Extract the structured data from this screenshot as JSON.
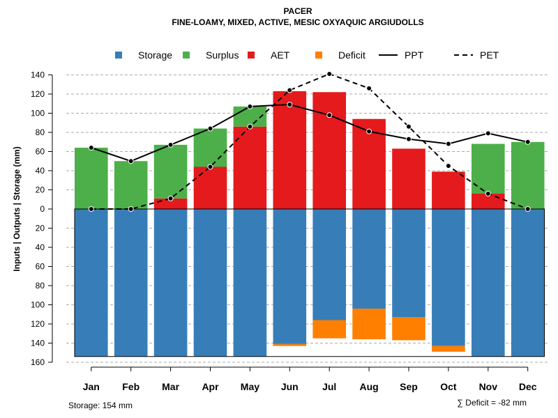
{
  "chart_data": {
    "type": "bar",
    "title": "PACER",
    "subtitle": "FINE-LOAMY, MIXED, ACTIVE, MESIC OXYAQUIC ARGIUDOLLS",
    "ylabel": "Inputs | Outputs | Storage    (mm)",
    "ylim": [
      -160,
      145
    ],
    "yticks": [
      140,
      120,
      100,
      80,
      60,
      40,
      20,
      0,
      -20,
      -40,
      -60,
      -80,
      -100,
      -120,
      -140,
      -160
    ],
    "ytick_labels": [
      "140",
      "120",
      "100",
      "80",
      "60",
      "40",
      "20",
      "0",
      "20",
      "40",
      "60",
      "80",
      "100",
      "120",
      "140",
      "160"
    ],
    "categories": [
      "Jan",
      "Feb",
      "Mar",
      "Apr",
      "May",
      "Jun",
      "Jul",
      "Aug",
      "Sep",
      "Oct",
      "Nov",
      "Dec"
    ],
    "legend": {
      "position": "top",
      "items": [
        {
          "label": "Storage",
          "kind": "square",
          "color": "#377EB8"
        },
        {
          "label": "Surplus",
          "kind": "square",
          "color": "#4DAF4A"
        },
        {
          "label": "AET",
          "kind": "square",
          "color": "#E41A1C"
        },
        {
          "label": "Deficit",
          "kind": "square",
          "color": "#FF7F00"
        },
        {
          "label": "PPT",
          "kind": "solid"
        },
        {
          "label": "PET",
          "kind": "dashed"
        }
      ]
    },
    "series": [
      {
        "name": "Storage",
        "color": "#377EB8",
        "values": [
          154,
          154,
          154,
          154,
          154,
          141,
          116,
          104,
          113,
          143,
          154,
          154
        ]
      },
      {
        "name": "Deficit",
        "color": "#FF7F00",
        "values": [
          0,
          0,
          0,
          0,
          0,
          2,
          19,
          32,
          24,
          6,
          0,
          0
        ]
      },
      {
        "name": "AET",
        "color": "#E41A1C",
        "values": [
          0,
          0,
          11,
          44,
          86,
          123,
          122,
          94,
          63,
          39,
          16,
          0
        ]
      },
      {
        "name": "Surplus",
        "color": "#4DAF4A",
        "values": [
          64,
          50,
          56,
          40,
          21,
          0,
          0,
          0,
          0,
          0,
          52,
          70
        ]
      },
      {
        "name": "PPT",
        "color": "#000000",
        "values": [
          64,
          50,
          67,
          84,
          107,
          109,
          98,
          81,
          73,
          68,
          79,
          70
        ]
      },
      {
        "name": "PET",
        "color": "#000000",
        "values": [
          0,
          0,
          11,
          44,
          86,
          124,
          141,
          126,
          86,
          45,
          16,
          0
        ]
      }
    ],
    "storage_note": "Storage: 154 mm",
    "deficit_note": "∑ Deficit = -82 mm"
  }
}
